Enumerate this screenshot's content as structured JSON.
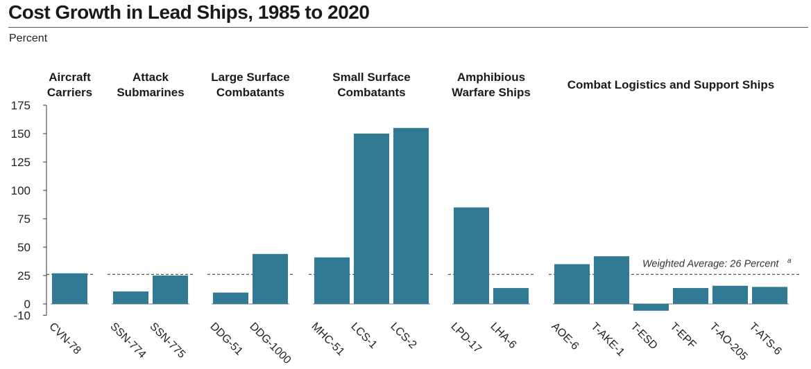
{
  "title": "Cost Growth in Lead Ships, 1985 to 2020",
  "ylabel": "Percent",
  "chart_data": {
    "type": "bar",
    "title": "Cost Growth in Lead Ships, 1985 to 2020",
    "ylabel": "Percent",
    "ylim": [
      -10,
      175
    ],
    "yticks": [
      175,
      150,
      125,
      100,
      75,
      50,
      25,
      0,
      -10
    ],
    "grid": false,
    "bar_color": "#327a94",
    "reference_line": {
      "value": 26,
      "label": "Weighted Average: 26 Percent",
      "footnote": "a"
    },
    "groups": [
      {
        "label": [
          "Aircraft",
          "Carriers"
        ],
        "categories": [
          "CVN-78"
        ],
        "values": [
          27
        ]
      },
      {
        "label": [
          "Attack",
          "Submarines"
        ],
        "categories": [
          "SSN-774",
          "SSN-775"
        ],
        "values": [
          11,
          25
        ]
      },
      {
        "label": [
          "Large Surface",
          "Combatants"
        ],
        "categories": [
          "DDG-51",
          "DDG-1000"
        ],
        "values": [
          10,
          44
        ]
      },
      {
        "label": [
          "Small Surface",
          "Combatants"
        ],
        "categories": [
          "MHC-51",
          "LCS-1",
          "LCS-2"
        ],
        "values": [
          41,
          150,
          155
        ]
      },
      {
        "label": [
          "Amphibious",
          "Warfare Ships"
        ],
        "categories": [
          "LPD-17",
          "LHA-6"
        ],
        "values": [
          85,
          14
        ]
      },
      {
        "label": [
          "Combat Logistics and Support Ships"
        ],
        "categories": [
          "AOE-6",
          "T-AKE-1",
          "T-ESD",
          "T-EPF",
          "T-AO-205",
          "T-ATS-6"
        ],
        "values": [
          35,
          42,
          -6,
          14,
          16,
          15
        ]
      }
    ]
  }
}
